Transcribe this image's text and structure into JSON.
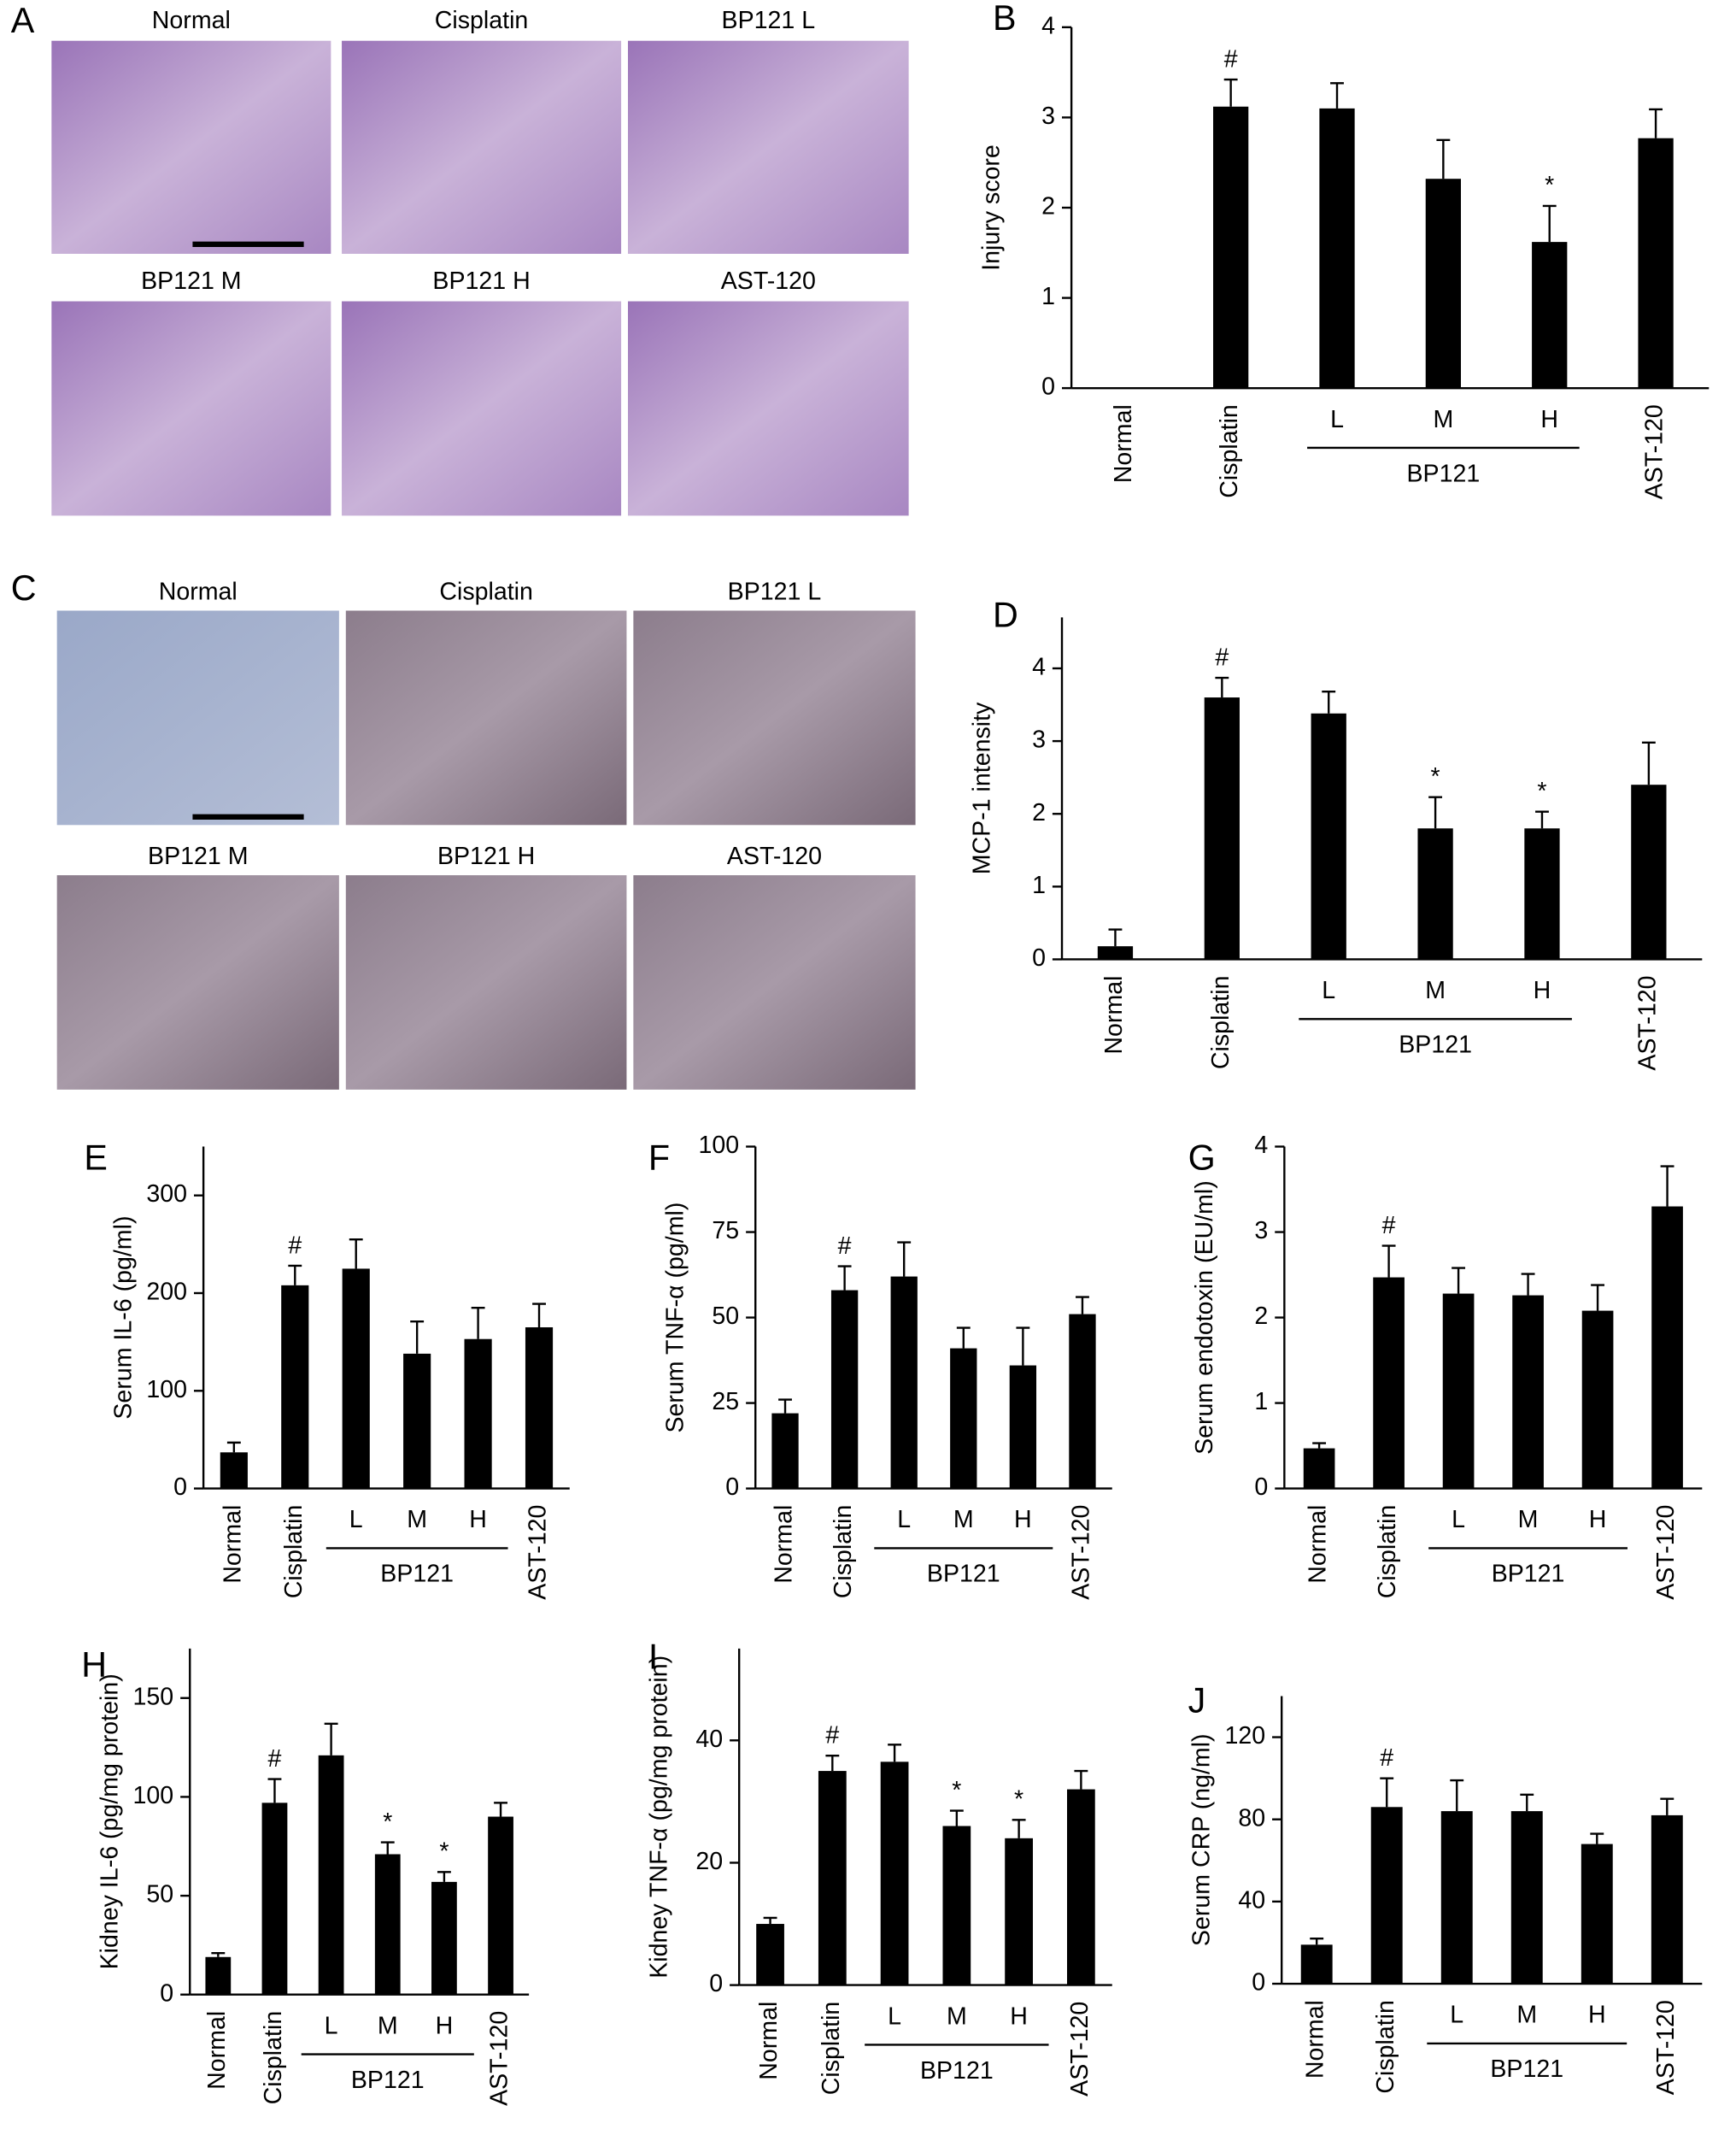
{
  "micrographs": [
    {
      "panel_label": "A",
      "labels": [
        "Normal",
        "Cisplatin",
        "BP121 L",
        "BP121 M",
        "BP121 H",
        "AST-120"
      ]
    },
    {
      "panel_label": "C",
      "labels": [
        "Normal",
        "Cisplatin",
        "BP121 L",
        "BP121 M",
        "BP121 H",
        "AST-120"
      ]
    }
  ],
  "chart_data": [
    {
      "type": "bar",
      "panel_label": "B",
      "y_label": "Injury score",
      "categories": [
        "Normal",
        "Cisplatin",
        "L",
        "M",
        "H",
        "AST-120"
      ],
      "group": {
        "label": "BP121",
        "first": 2,
        "last": 4
      },
      "values": [
        0,
        3.12,
        3.1,
        2.32,
        1.62,
        2.77
      ],
      "errors": [
        0,
        0.3,
        0.28,
        0.43,
        0.4,
        0.32
      ],
      "markers": [
        null,
        "#",
        null,
        null,
        "*",
        null
      ],
      "color": "#000000",
      "ylim": [
        0,
        4
      ],
      "yticks": [
        0,
        1,
        2,
        3,
        4
      ]
    },
    {
      "type": "bar",
      "panel_label": "D",
      "y_label": "MCP-1 intensity",
      "categories": [
        "Normal",
        "Cisplatin",
        "L",
        "M",
        "H",
        "AST-120"
      ],
      "group": {
        "label": "BP121",
        "first": 2,
        "last": 4
      },
      "values": [
        0.18,
        3.6,
        3.38,
        1.8,
        1.8,
        2.4
      ],
      "errors": [
        0.23,
        0.27,
        0.3,
        0.43,
        0.23,
        0.58
      ],
      "markers": [
        null,
        "#",
        null,
        "*",
        "*",
        null
      ],
      "color": "#000000",
      "ylim": [
        0,
        4.7
      ],
      "yticks": [
        0,
        1,
        2,
        3,
        4
      ]
    },
    {
      "type": "bar",
      "panel_label": "E",
      "y_label": "Serum IL-6 (pg/ml)",
      "categories": [
        "Normal",
        "Cisplatin",
        "L",
        "M",
        "H",
        "AST-120"
      ],
      "group": {
        "label": "BP121",
        "first": 2,
        "last": 4
      },
      "values": [
        37,
        208,
        225,
        138,
        153,
        165
      ],
      "errors": [
        10,
        20,
        30,
        33,
        32,
        24
      ],
      "markers": [
        null,
        "#",
        null,
        null,
        null,
        null
      ],
      "color": "#000000",
      "ylim": [
        0,
        350
      ],
      "yticks": [
        0,
        100,
        200,
        300
      ]
    },
    {
      "type": "bar",
      "panel_label": "F",
      "y_label": "Serum TNF-α (pg/ml)",
      "categories": [
        "Normal",
        "Cisplatin",
        "L",
        "M",
        "H",
        "AST-120"
      ],
      "group": {
        "label": "BP121",
        "first": 2,
        "last": 4
      },
      "values": [
        22,
        58,
        62,
        41,
        36,
        51
      ],
      "errors": [
        4,
        7,
        10,
        6,
        11,
        5
      ],
      "markers": [
        null,
        "#",
        null,
        null,
        null,
        null
      ],
      "color": "#000000",
      "ylim": [
        0,
        100
      ],
      "yticks": [
        0,
        25,
        50,
        75,
        100
      ]
    },
    {
      "type": "bar",
      "panel_label": "G",
      "y_label": "Serum endotoxin (EU/ml)",
      "categories": [
        "Normal",
        "Cisplatin",
        "L",
        "M",
        "H",
        "AST-120"
      ],
      "group": {
        "label": "BP121",
        "first": 2,
        "last": 4
      },
      "values": [
        0.47,
        2.47,
        2.28,
        2.26,
        2.08,
        3.3
      ],
      "errors": [
        0.06,
        0.37,
        0.3,
        0.25,
        0.3,
        0.47
      ],
      "markers": [
        null,
        "#",
        null,
        null,
        null,
        null
      ],
      "color": "#000000",
      "ylim": [
        0,
        4
      ],
      "yticks": [
        0,
        1,
        2,
        3,
        4
      ]
    },
    {
      "type": "bar",
      "panel_label": "H",
      "y_label": "Kidney IL-6 (pg/mg protein)",
      "categories": [
        "Normal",
        "Cisplatin",
        "L",
        "M",
        "H",
        "AST-120"
      ],
      "group": {
        "label": "BP121",
        "first": 2,
        "last": 4
      },
      "values": [
        19,
        97,
        121,
        71,
        57,
        90
      ],
      "errors": [
        2,
        12,
        16,
        6,
        5,
        7
      ],
      "markers": [
        null,
        "#",
        null,
        "*",
        "*",
        null
      ],
      "color": "#000000",
      "ylim": [
        0,
        175
      ],
      "yticks": [
        0,
        50,
        100,
        150
      ]
    },
    {
      "type": "bar",
      "panel_label": "I",
      "y_label": "Kidney TNF-α (pg/mg protein)",
      "categories": [
        "Normal",
        "Cisplatin",
        "L",
        "M",
        "H",
        "AST-120"
      ],
      "group": {
        "label": "BP121",
        "first": 2,
        "last": 4
      },
      "values": [
        10,
        35,
        36.5,
        26,
        24,
        32
      ],
      "errors": [
        1,
        2.5,
        2.8,
        2.5,
        3,
        3
      ],
      "markers": [
        null,
        "#",
        null,
        "*",
        "*",
        null
      ],
      "color": "#000000",
      "ylim": [
        0,
        55
      ],
      "yticks": [
        0,
        20,
        40
      ]
    },
    {
      "type": "bar",
      "panel_label": "J",
      "y_label": "Serum CRP (ng/ml)",
      "categories": [
        "Normal",
        "Cisplatin",
        "L",
        "M",
        "H",
        "AST-120"
      ],
      "group": {
        "label": "BP121",
        "first": 2,
        "last": 4
      },
      "values": [
        19,
        86,
        84,
        84,
        68,
        82
      ],
      "errors": [
        3,
        14,
        15,
        8,
        5,
        8
      ],
      "markers": [
        null,
        "#",
        null,
        null,
        null,
        null
      ],
      "color": "#000000",
      "ylim": [
        0,
        140
      ],
      "yticks": [
        0,
        40,
        80,
        120
      ]
    }
  ]
}
